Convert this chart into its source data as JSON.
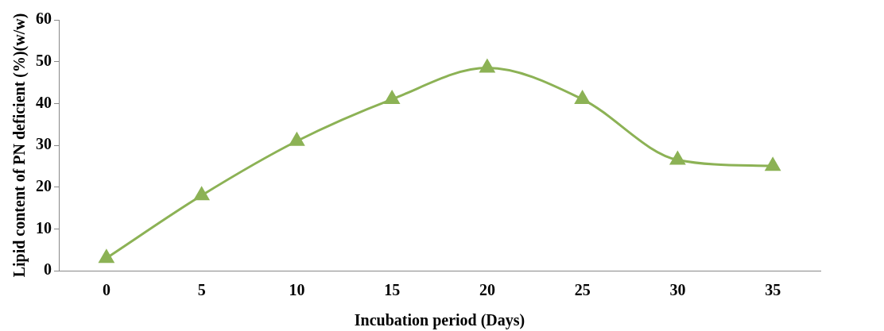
{
  "chart_data": {
    "type": "line",
    "xlabel": "Incubation period (Days)",
    "ylabel": "Lipid content of PN deficient (%)(w/w)",
    "categories": [
      "0",
      "5",
      "10",
      "15",
      "20",
      "25",
      "30",
      "35"
    ],
    "series": [
      {
        "color": "#8cb255",
        "values": [
          3,
          18,
          31,
          41,
          48.5,
          41,
          26.5,
          25
        ]
      }
    ],
    "ylim": [
      0,
      60
    ],
    "yticks": [
      0,
      10,
      20,
      30,
      40,
      50,
      60
    ],
    "grid": false,
    "legend": false,
    "marker": "triangle",
    "line_style": "solid"
  }
}
